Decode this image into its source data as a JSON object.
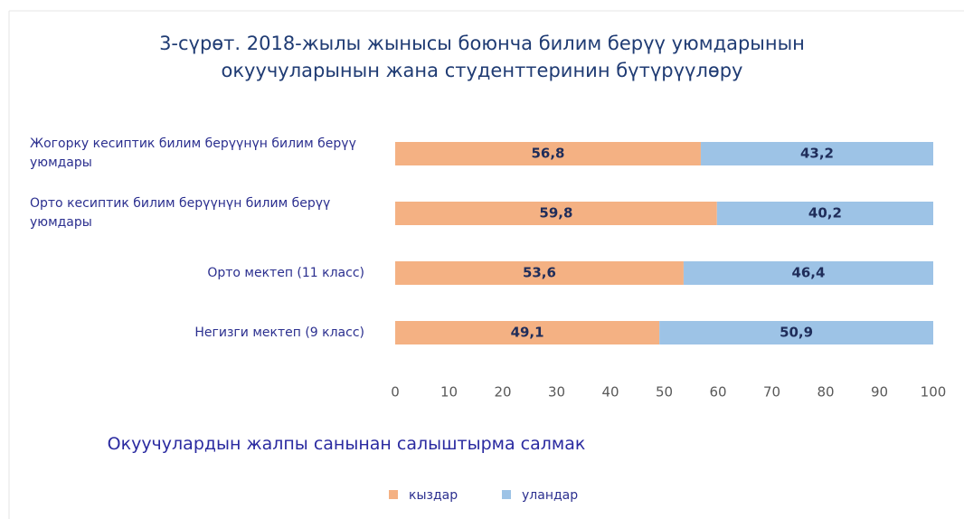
{
  "chart_data": {
    "type": "stacked_barh",
    "title": [
      "3-сүрөт. 2018-жылы жынысы боюнча билим берүү уюмдарынын",
      "окуучуларынын жана студенттеринин бүтүрүүлөру"
    ],
    "x_label": "Окуучулардын жалпы санынан салыштырма салмак",
    "categories": [
      "Жогорку кесиптик билим берүүнүн билим берүү уюмдары",
      "Орто кесиптик билим берүүнүн билим берүү уюмдары",
      "Орто мектеп (11 класс)",
      "Негизги мектеп (9 класс)"
    ],
    "series": [
      {
        "name": "кыздар",
        "color": "#f4b183",
        "values": [
          56.8,
          59.8,
          53.6,
          49.1
        ],
        "value_labels": [
          "56,8",
          "59,8",
          "53,6",
          "49,1"
        ]
      },
      {
        "name": "уландар",
        "color": "#9dc3e6",
        "values": [
          43.2,
          40.2,
          46.4,
          50.9
        ],
        "value_labels": [
          "43,2",
          "40,2",
          "46,4",
          "50,9"
        ]
      }
    ],
    "xlim": [
      0,
      100
    ],
    "xticks": [
      0,
      10,
      20,
      30,
      40,
      50,
      60,
      70,
      80,
      90,
      100
    ],
    "legend": "bottom",
    "grid": false
  }
}
